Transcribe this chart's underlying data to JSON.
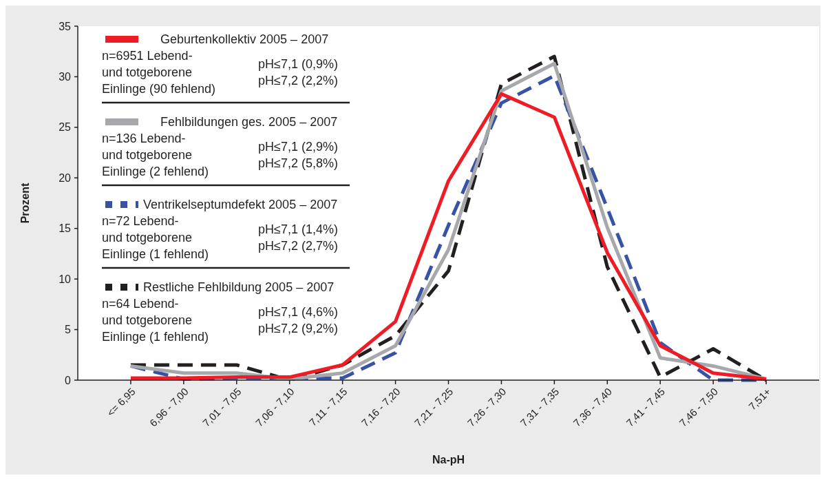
{
  "chart_data": {
    "type": "line",
    "xlabel": "Na-pH",
    "ylabel": "Prozent",
    "categories": [
      "<= 6,95",
      "6,96 - 7,00",
      "7,01 - 7,05",
      "7,06 - 7,10",
      "7,11 - 7,15",
      "7,16 - 7,20",
      "7,21 - 7,25",
      "7,26 - 7,30",
      "7,31 - 7,35",
      "7,36 - 7,40",
      "7,41 - 7,45",
      "7,46 - 7,50",
      "7,51+"
    ],
    "series": [
      {
        "name": "Geburtenkollektiv 2005 – 2007",
        "color": "#ee1c25",
        "line_style": "solid",
        "values": [
          0.2,
          0.2,
          0.3,
          0.3,
          1.5,
          5.8,
          19.7,
          28.3,
          26.0,
          12.6,
          3.4,
          0.7,
          0.1
        ]
      },
      {
        "name": "Fehlbildungen ges. 2005 – 2007",
        "color": "#a6a8ab",
        "line_style": "solid",
        "values": [
          1.4,
          0.7,
          0.7,
          0.1,
          0.7,
          3.4,
          12.9,
          28.6,
          31.3,
          15.1,
          2.2,
          1.4,
          0.1
        ]
      },
      {
        "name": "Ventrikelseptumdefekt 2005 – 2007",
        "color": "#3953a4",
        "line_style": "dashed",
        "values": [
          1.4,
          0.1,
          0.2,
          0.2,
          0.2,
          2.7,
          15.3,
          27.4,
          30.1,
          17.0,
          3.7,
          0.0,
          0.0
        ]
      },
      {
        "name": "Restliche Fehlbildung 2005 – 2007",
        "color": "#231f20",
        "line_style": "dashed",
        "values": [
          1.5,
          1.5,
          1.5,
          0.0,
          1.5,
          4.4,
          10.8,
          29.3,
          32.0,
          11.2,
          0.3,
          3.1,
          0.0
        ]
      }
    ],
    "annotations": [
      "n=6951 Lebend-\nund totgeborene\nEinlinge (90 fehlend)",
      "pH≤7,1 (0,9%)\npH≤7,2 (2,2%)",
      "n=136 Lebend-\nund totgeborene\nEinlinge (2 fehlend)",
      "pH≤7,1 (2,9%)\npH≤7,2 (5,8%)",
      "n=72 Lebend-\nund totgeborene\nEinlinge (1 fehlend)",
      "pH≤7,1 (1,4%)\npH≤7,2 (2,7%)",
      "n=64 Lebend-\nund totgeborene\nEinlinge (1 fehlend)",
      "pH≤7,1 (4,6%)\npH≤7,2 (9,2%)"
    ],
    "ylim": [
      0,
      35
    ],
    "yticks": [
      0,
      5,
      10,
      15,
      20,
      25,
      30,
      35
    ],
    "grid": false,
    "legend": "top left"
  }
}
